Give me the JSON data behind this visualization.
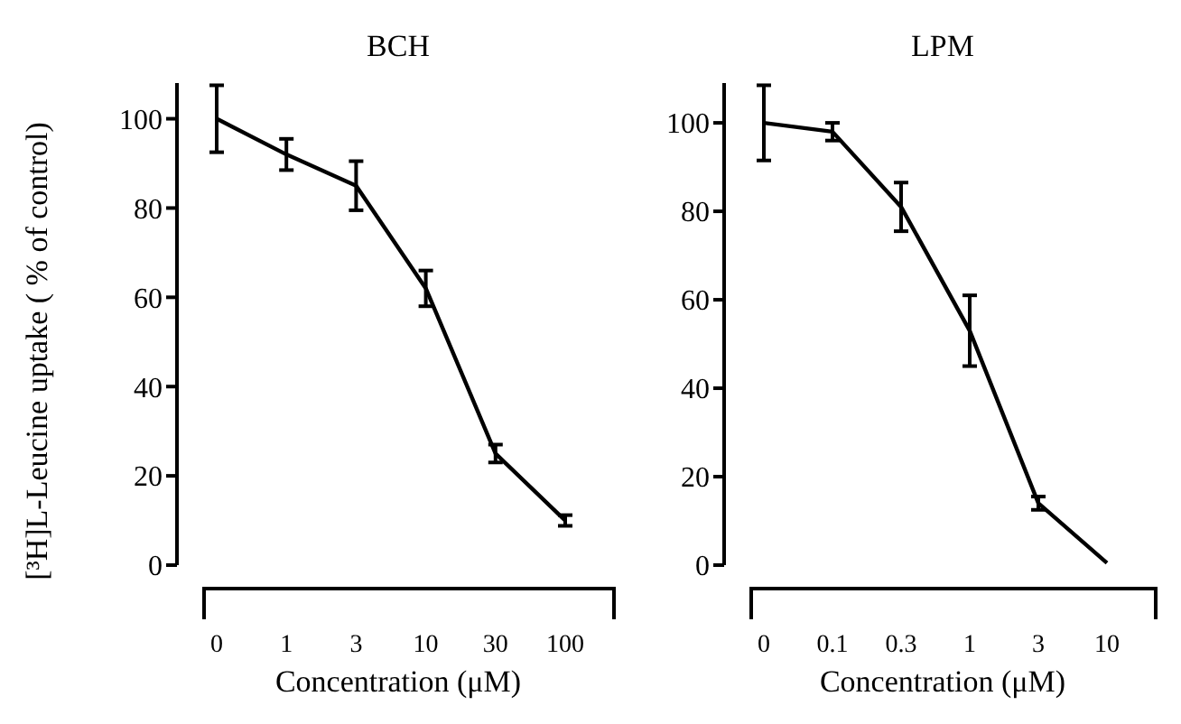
{
  "chart_data": [
    {
      "type": "line",
      "title": "BCH",
      "xlabel": "Concentration (μM)",
      "ylabel": "[³H]L-Leucine uptake ( % of control)",
      "categories": [
        "0",
        "1",
        "3",
        "10",
        "30",
        "100"
      ],
      "series": [
        {
          "color": "#000000",
          "values": [
            100,
            92,
            85,
            62,
            25,
            10
          ],
          "errors": [
            7.5,
            3.5,
            5.5,
            4,
            2,
            1.2
          ]
        }
      ],
      "ylim": [
        0,
        108
      ],
      "yticks": [
        0,
        20,
        40,
        60,
        80,
        100
      ],
      "grid": false,
      "legend": false,
      "marker": "none",
      "line_style": "solid"
    },
    {
      "type": "line",
      "title": "LPM",
      "xlabel": "Concentration (μM)",
      "categories": [
        "0",
        "0.1",
        "0.3",
        "1",
        "3",
        "10"
      ],
      "series": [
        {
          "color": "#000000",
          "values": [
            100,
            98,
            81,
            53,
            14,
            0.5
          ],
          "errors": [
            8.5,
            2,
            5.5,
            8,
            1.5,
            null
          ]
        }
      ],
      "ylim": [
        0,
        109
      ],
      "yticks": [
        0,
        20,
        40,
        60,
        80,
        100
      ],
      "grid": false,
      "legend": false,
      "marker": "none",
      "line_style": "solid"
    }
  ]
}
